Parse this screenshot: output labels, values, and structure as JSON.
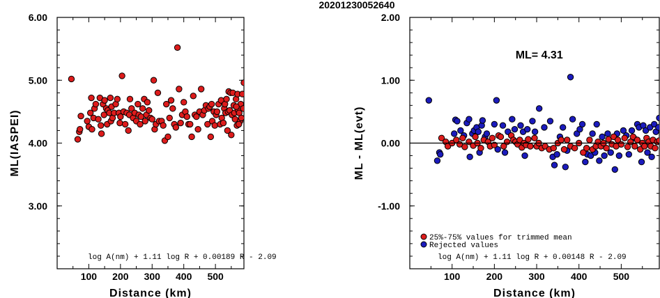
{
  "title": "20201230052640",
  "chart_data": [
    {
      "type": "scatter",
      "xlabel": "Distance (km)",
      "ylabel": "ML(IASPEI)",
      "xlim": [
        0,
        590
      ],
      "ylim": [
        2.0,
        6.0
      ],
      "xticks": [
        100,
        200,
        300,
        400,
        500
      ],
      "yticks": [
        3.0,
        4.0,
        5.0,
        6.0
      ],
      "ytick_labels": [
        "3.00",
        "4.00",
        "5.00",
        "6.00"
      ],
      "annotation": "log A(nm) + 1.11 log R + 0.00189 R - 2.09",
      "point_color": "#dd1c1c",
      "points": [
        [
          45,
          5.02
        ],
        [
          65,
          4.06
        ],
        [
          70,
          4.18
        ],
        [
          72,
          4.22
        ],
        [
          75,
          4.43
        ],
        [
          95,
          4.35
        ],
        [
          100,
          4.26
        ],
        [
          105,
          4.48
        ],
        [
          108,
          4.72
        ],
        [
          110,
          4.22
        ],
        [
          115,
          4.4
        ],
        [
          118,
          4.55
        ],
        [
          122,
          4.62
        ],
        [
          130,
          4.38
        ],
        [
          135,
          4.72
        ],
        [
          138,
          4.28
        ],
        [
          140,
          4.15
        ],
        [
          145,
          4.62
        ],
        [
          148,
          4.45
        ],
        [
          150,
          4.68
        ],
        [
          155,
          4.55
        ],
        [
          158,
          4.3
        ],
        [
          160,
          4.52
        ],
        [
          165,
          4.48
        ],
        [
          168,
          4.72
        ],
        [
          170,
          4.35
        ],
        [
          172,
          4.58
        ],
        [
          175,
          4.4
        ],
        [
          180,
          4.48
        ],
        [
          185,
          4.62
        ],
        [
          190,
          4.7
        ],
        [
          195,
          4.48
        ],
        [
          198,
          4.32
        ],
        [
          200,
          4.42
        ],
        [
          205,
          5.07
        ],
        [
          210,
          4.5
        ],
        [
          215,
          4.3
        ],
        [
          220,
          4.48
        ],
        [
          225,
          4.2
        ],
        [
          228,
          4.45
        ],
        [
          230,
          4.7
        ],
        [
          235,
          4.55
        ],
        [
          240,
          4.4
        ],
        [
          245,
          4.48
        ],
        [
          250,
          4.35
        ],
        [
          255,
          4.62
        ],
        [
          258,
          4.45
        ],
        [
          262,
          4.3
        ],
        [
          265,
          4.42
        ],
        [
          270,
          4.55
        ],
        [
          275,
          4.7
        ],
        [
          278,
          4.35
        ],
        [
          282,
          4.45
        ],
        [
          285,
          4.65
        ],
        [
          290,
          4.52
        ],
        [
          295,
          4.4
        ],
        [
          300,
          4.38
        ],
        [
          305,
          5.0
        ],
        [
          308,
          4.22
        ],
        [
          312,
          4.3
        ],
        [
          318,
          4.8
        ],
        [
          322,
          4.35
        ],
        [
          330,
          4.35
        ],
        [
          335,
          4.28
        ],
        [
          340,
          4.04
        ],
        [
          345,
          4.62
        ],
        [
          350,
          4.1
        ],
        [
          355,
          4.4
        ],
        [
          360,
          4.68
        ],
        [
          365,
          4.55
        ],
        [
          370,
          4.3
        ],
        [
          375,
          4.25
        ],
        [
          380,
          5.52
        ],
        [
          385,
          4.86
        ],
        [
          390,
          4.32
        ],
        [
          395,
          4.45
        ],
        [
          400,
          4.65
        ],
        [
          405,
          4.5
        ],
        [
          410,
          4.42
        ],
        [
          415,
          4.3
        ],
        [
          420,
          4.3
        ],
        [
          425,
          4.1
        ],
        [
          430,
          4.75
        ],
        [
          435,
          4.45
        ],
        [
          440,
          4.42
        ],
        [
          445,
          4.22
        ],
        [
          450,
          4.5
        ],
        [
          455,
          4.86
        ],
        [
          460,
          4.45
        ],
        [
          465,
          4.52
        ],
        [
          470,
          4.6
        ],
        [
          475,
          4.3
        ],
        [
          478,
          4.55
        ],
        [
          482,
          4.58
        ],
        [
          485,
          4.1
        ],
        [
          488,
          4.62
        ],
        [
          490,
          4.35
        ],
        [
          495,
          4.5
        ],
        [
          498,
          4.28
        ],
        [
          502,
          4.45
        ],
        [
          505,
          4.5
        ],
        [
          510,
          4.62
        ],
        [
          515,
          4.3
        ],
        [
          518,
          4.68
        ],
        [
          520,
          4.4
        ],
        [
          525,
          4.32
        ],
        [
          528,
          4.55
        ],
        [
          530,
          4.62
        ],
        [
          532,
          4.48
        ],
        [
          535,
          4.7
        ],
        [
          538,
          4.2
        ],
        [
          540,
          4.5
        ],
        [
          542,
          4.82
        ],
        [
          545,
          4.52
        ],
        [
          548,
          4.8
        ],
        [
          550,
          4.13
        ],
        [
          552,
          4.45
        ],
        [
          555,
          4.8
        ],
        [
          558,
          4.6
        ],
        [
          560,
          4.48
        ],
        [
          562,
          4.38
        ],
        [
          565,
          4.7
        ],
        [
          568,
          4.28
        ],
        [
          570,
          4.78
        ],
        [
          572,
          4.52
        ],
        [
          575,
          4.48
        ],
        [
          578,
          4.35
        ],
        [
          580,
          4.62
        ],
        [
          582,
          4.4
        ],
        [
          585,
          4.78
        ],
        [
          588,
          4.55
        ],
        [
          590,
          4.96
        ],
        [
          574,
          4.3
        ],
        [
          566,
          4.58
        ]
      ]
    },
    {
      "type": "scatter",
      "xlabel": "Distance (km)",
      "ylabel": "ML - ML(evt)",
      "xlim": [
        0,
        590
      ],
      "ylim": [
        -2.0,
        2.0
      ],
      "xticks": [
        100,
        200,
        300,
        400,
        500
      ],
      "yticks": [
        -1.0,
        0.0,
        1.0,
        2.0
      ],
      "ytick_labels": [
        "-1.00",
        "0.00",
        "1.00",
        "2.00"
      ],
      "reference_line": 0.0,
      "ml_label": "ML= 4.31",
      "annotation": "log A(nm) + 1.11 log R + 0.00148 R - 2.09",
      "legend": [
        {
          "label": "25%-75% values for trimmed mean",
          "color": "#dd1c1c"
        },
        {
          "label": "Rejected values",
          "color": "#1b1bbd"
        }
      ],
      "trimmed_points": [
        [
          75,
          0.08
        ],
        [
          85,
          0.02
        ],
        [
          90,
          -0.05
        ],
        [
          100,
          0.0
        ],
        [
          110,
          0.05
        ],
        [
          118,
          -0.02
        ],
        [
          125,
          0.08
        ],
        [
          130,
          -0.06
        ],
        [
          140,
          0.02
        ],
        [
          150,
          -0.04
        ],
        [
          155,
          0.1
        ],
        [
          160,
          0.0
        ],
        [
          168,
          -0.08
        ],
        [
          175,
          0.05
        ],
        [
          185,
          0.02
        ],
        [
          190,
          -0.05
        ],
        [
          195,
          0.08
        ],
        [
          200,
          -0.03
        ],
        [
          210,
          0.12
        ],
        [
          215,
          0.1
        ],
        [
          222,
          -0.05
        ],
        [
          230,
          0.02
        ],
        [
          240,
          0.12
        ],
        [
          245,
          0.05
        ],
        [
          250,
          0.02
        ],
        [
          255,
          -0.02
        ],
        [
          260,
          0.05
        ],
        [
          265,
          -0.07
        ],
        [
          270,
          0.0
        ],
        [
          275,
          -0.03
        ],
        [
          280,
          0.06
        ],
        [
          285,
          -0.05
        ],
        [
          295,
          0.08
        ],
        [
          300,
          -0.05
        ],
        [
          305,
          0.0
        ],
        [
          312,
          -0.08
        ],
        [
          320,
          -0.05
        ],
        [
          330,
          -0.1
        ],
        [
          340,
          -0.08
        ],
        [
          350,
          0.0
        ],
        [
          358,
          0.05
        ],
        [
          365,
          -0.1
        ],
        [
          372,
          0.05
        ],
        [
          380,
          -0.05
        ],
        [
          390,
          -0.08
        ],
        [
          400,
          0.0
        ],
        [
          410,
          -0.15
        ],
        [
          418,
          -0.08
        ],
        [
          425,
          0.05
        ],
        [
          432,
          -0.1
        ],
        [
          440,
          -0.05
        ],
        [
          445,
          0.02
        ],
        [
          452,
          -0.05
        ],
        [
          458,
          0.0
        ],
        [
          465,
          -0.08
        ],
        [
          470,
          0.06
        ],
        [
          478,
          -0.02
        ],
        [
          482,
          0.1
        ],
        [
          488,
          -0.05
        ],
        [
          492,
          0.05
        ],
        [
          500,
          -0.02
        ],
        [
          508,
          0.08
        ],
        [
          515,
          -0.06
        ],
        [
          522,
          0.02
        ],
        [
          528,
          0.1
        ],
        [
          532,
          -0.05
        ],
        [
          538,
          0.05
        ],
        [
          545,
          -0.1
        ],
        [
          550,
          0.0
        ],
        [
          555,
          -0.05
        ],
        [
          560,
          0.08
        ],
        [
          565,
          0.02
        ],
        [
          570,
          -0.05
        ],
        [
          575,
          0.05
        ],
        [
          580,
          -0.08
        ],
        [
          585,
          0.02
        ],
        [
          590,
          0.04
        ]
      ],
      "rejected_points": [
        [
          45,
          0.68
        ],
        [
          65,
          -0.28
        ],
        [
          70,
          -0.15
        ],
        [
          72,
          -0.18
        ],
        [
          105,
          0.15
        ],
        [
          108,
          0.37
        ],
        [
          112,
          0.35
        ],
        [
          120,
          0.2
        ],
        [
          128,
          0.12
        ],
        [
          135,
          0.32
        ],
        [
          140,
          0.38
        ],
        [
          142,
          -0.22
        ],
        [
          148,
          0.15
        ],
        [
          152,
          0.2
        ],
        [
          158,
          0.25
        ],
        [
          162,
          0.18
        ],
        [
          165,
          -0.15
        ],
        [
          170,
          0.28
        ],
        [
          172,
          0.36
        ],
        [
          178,
          0.1
        ],
        [
          182,
          0.15
        ],
        [
          200,
          0.3
        ],
        [
          205,
          0.68
        ],
        [
          208,
          -0.1
        ],
        [
          220,
          0.28
        ],
        [
          225,
          -0.15
        ],
        [
          232,
          0.18
        ],
        [
          242,
          0.38
        ],
        [
          248,
          0.22
        ],
        [
          262,
          0.28
        ],
        [
          268,
          0.18
        ],
        [
          272,
          -0.2
        ],
        [
          278,
          0.22
        ],
        [
          290,
          0.35
        ],
        [
          296,
          0.18
        ],
        [
          306,
          0.55
        ],
        [
          318,
          0.25
        ],
        [
          332,
          0.35
        ],
        [
          338,
          -0.22
        ],
        [
          342,
          -0.35
        ],
        [
          348,
          -0.18
        ],
        [
          355,
          0.1
        ],
        [
          362,
          0.25
        ],
        [
          368,
          -0.38
        ],
        [
          372,
          -0.12
        ],
        [
          380,
          1.05
        ],
        [
          385,
          0.38
        ],
        [
          395,
          0.15
        ],
        [
          402,
          0.22
        ],
        [
          408,
          0.3
        ],
        [
          415,
          -0.3
        ],
        [
          420,
          -0.18
        ],
        [
          428,
          -0.2
        ],
        [
          432,
          0.15
        ],
        [
          438,
          -0.15
        ],
        [
          442,
          0.3
        ],
        [
          448,
          -0.28
        ],
        [
          455,
          0.1
        ],
        [
          460,
          -0.2
        ],
        [
          468,
          0.15
        ],
        [
          475,
          -0.15
        ],
        [
          485,
          -0.42
        ],
        [
          490,
          0.15
        ],
        [
          495,
          -0.2
        ],
        [
          505,
          0.2
        ],
        [
          512,
          0.12
        ],
        [
          518,
          -0.18
        ],
        [
          525,
          0.2
        ],
        [
          530,
          0.08
        ],
        [
          538,
          0.3
        ],
        [
          542,
          0.25
        ],
        [
          548,
          -0.3
        ],
        [
          552,
          0.28
        ],
        [
          558,
          0.2
        ],
        [
          562,
          -0.15
        ],
        [
          568,
          0.25
        ],
        [
          572,
          -0.22
        ],
        [
          578,
          0.3
        ],
        [
          582,
          0.18
        ],
        [
          588,
          0.25
        ],
        [
          590,
          0.4
        ]
      ]
    }
  ]
}
